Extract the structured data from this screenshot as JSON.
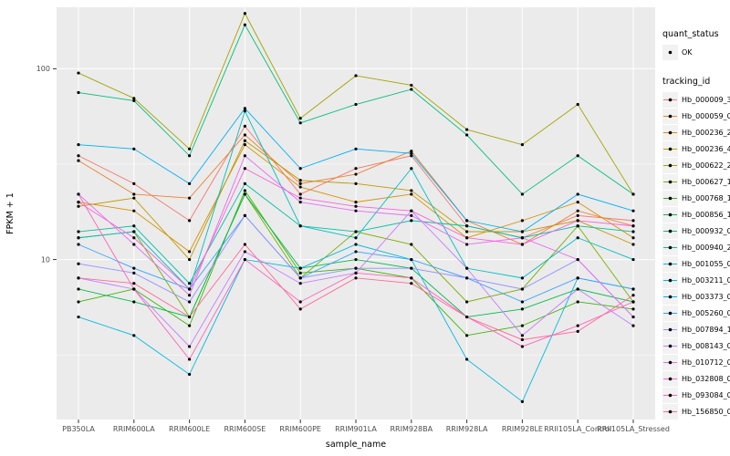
{
  "chart_data": {
    "type": "line",
    "title": "",
    "xlabel": "sample_name",
    "ylabel": "FPKM + 1",
    "yscale": "log10",
    "ylim": [
      1.45,
      210
    ],
    "yticks": [
      10,
      100
    ],
    "ytick_labels": [
      "10",
      "100"
    ],
    "minor_gridlines": [
      3.1623,
      31.623
    ],
    "grid": true,
    "panel_bg": "#EBEBEB",
    "grid_color": "#FFFFFF",
    "point_color": "#000000",
    "categories": [
      "PB350LA",
      "RRIM600LA",
      "RRIM600LE",
      "RRIM600SE",
      "RRIM600PE",
      "RRIM901LA",
      "RRIM928BA",
      "RRIM928LA",
      "RRIM928LE",
      "RRII105LA_Control",
      "RRII105LA_Stressed"
    ],
    "series": [
      {
        "name": "Hb_000009_330",
        "color": "#F8766D",
        "values": [
          35,
          25,
          16,
          50,
          22,
          30,
          35,
          15,
          13,
          17,
          16
        ]
      },
      {
        "name": "Hb_000059_020",
        "color": "#EA8331",
        "values": [
          33,
          22,
          21,
          45,
          25,
          28,
          37,
          16,
          12,
          18,
          15
        ]
      },
      {
        "name": "Hb_000236_220",
        "color": "#D89000",
        "values": [
          20,
          18,
          11,
          40,
          24,
          20,
          22,
          13,
          16,
          20,
          13
        ]
      },
      {
        "name": "Hb_000236_410",
        "color": "#C09B00",
        "values": [
          19,
          21,
          10,
          42,
          26,
          25,
          23,
          14,
          14,
          16,
          12
        ]
      },
      {
        "name": "Hb_000622_250",
        "color": "#A3A500",
        "values": [
          95,
          70,
          38,
          195,
          55,
          92,
          82,
          48,
          40,
          65,
          22
        ]
      },
      {
        "name": "Hb_000627_180",
        "color": "#7CAE00",
        "values": [
          13,
          14,
          5,
          22,
          8,
          14,
          12,
          6,
          7,
          15,
          6
        ]
      },
      {
        "name": "Hb_000768_180",
        "color": "#39B600",
        "values": [
          6,
          7,
          4.5,
          23,
          8.5,
          9,
          8,
          4,
          4.5,
          6,
          5.5
        ]
      },
      {
        "name": "Hb_000856_180",
        "color": "#00BB4E",
        "values": [
          7,
          6,
          5,
          22,
          9,
          10,
          9,
          5,
          5.5,
          7,
          6
        ]
      },
      {
        "name": "Hb_000932_070",
        "color": "#00BF7D",
        "values": [
          75,
          68,
          35,
          170,
          52,
          65,
          78,
          45,
          22,
          35,
          22
        ]
      },
      {
        "name": "Hb_000940_200",
        "color": "#00C1A3",
        "values": [
          14,
          15,
          7.5,
          25,
          15,
          14,
          16,
          15,
          13,
          15,
          14
        ]
      },
      {
        "name": "Hb_001055_030",
        "color": "#00BFC4",
        "values": [
          13,
          14,
          7,
          60,
          15,
          13,
          30,
          9,
          8,
          13,
          10
        ]
      },
      {
        "name": "Hb_003211_010",
        "color": "#00BAE0",
        "values": [
          5,
          4,
          2.5,
          10,
          9,
          12,
          10,
          3,
          1.8,
          8,
          7
        ]
      },
      {
        "name": "Hb_003373_040",
        "color": "#00B0F6",
        "values": [
          40,
          38,
          25,
          62,
          30,
          38,
          36,
          16,
          14,
          22,
          18
        ]
      },
      {
        "name": "Hb_005260_010",
        "color": "#35A2FF",
        "values": [
          12,
          9,
          7,
          17,
          8,
          11,
          10,
          8,
          6,
          8,
          7
        ]
      },
      {
        "name": "Hb_007894_130",
        "color": "#9590FF",
        "values": [
          9.5,
          8.5,
          6,
          17,
          8,
          9,
          9,
          8,
          7,
          10,
          5
        ]
      },
      {
        "name": "Hb_008143_070",
        "color": "#C77CFF",
        "values": [
          8,
          7,
          3.5,
          11,
          7.5,
          8.5,
          18,
          9,
          4,
          7,
          4.5
        ]
      },
      {
        "name": "Hb_010712_090",
        "color": "#E76BF3",
        "values": [
          22,
          12,
          6.5,
          35,
          20,
          18,
          17,
          12,
          13,
          10,
          5
        ]
      },
      {
        "name": "Hb_032808_030",
        "color": "#FA62DB",
        "values": [
          20,
          13,
          7,
          30,
          21,
          19,
          18,
          13,
          12,
          16,
          15
        ]
      },
      {
        "name": "Hb_093084_070",
        "color": "#FF62BC",
        "values": [
          22,
          7,
          3,
          10,
          6,
          8.5,
          8,
          5,
          3.5,
          4.5,
          6
        ]
      },
      {
        "name": "Hb_156850_070",
        "color": "#FF6A98",
        "values": [
          8,
          7.5,
          5,
          12,
          5.5,
          8,
          7.5,
          5,
          3.8,
          4.2,
          6.5
        ]
      }
    ],
    "legend": {
      "position": "right",
      "quant_title": "quant_status",
      "quant_items": [
        {
          "label": "OK",
          "symbol": "point"
        }
      ],
      "tracking_title": "tracking_id"
    }
  }
}
